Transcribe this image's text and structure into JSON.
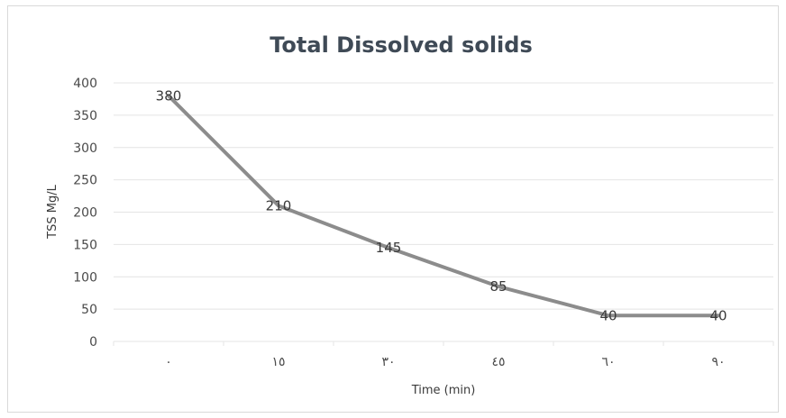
{
  "chart_data": {
    "type": "line",
    "title": "Total Dissolved solids",
    "xlabel": "Time (min)",
    "ylabel": "TSS Mg/L",
    "categories": [
      "٠",
      "١٥",
      "٣٠",
      "٤٥",
      "٦٠",
      "٩٠"
    ],
    "values": [
      380,
      210,
      145,
      85,
      40,
      40
    ],
    "data_labels": [
      "380",
      "210",
      "145",
      "85",
      "40",
      "40"
    ],
    "yticks": [
      "0",
      "50",
      "100",
      "150",
      "200",
      "250",
      "300",
      "350",
      "400"
    ],
    "ylim": [
      0,
      400
    ],
    "grid": true,
    "legend": "none",
    "line_color": "#8c8c8c"
  }
}
